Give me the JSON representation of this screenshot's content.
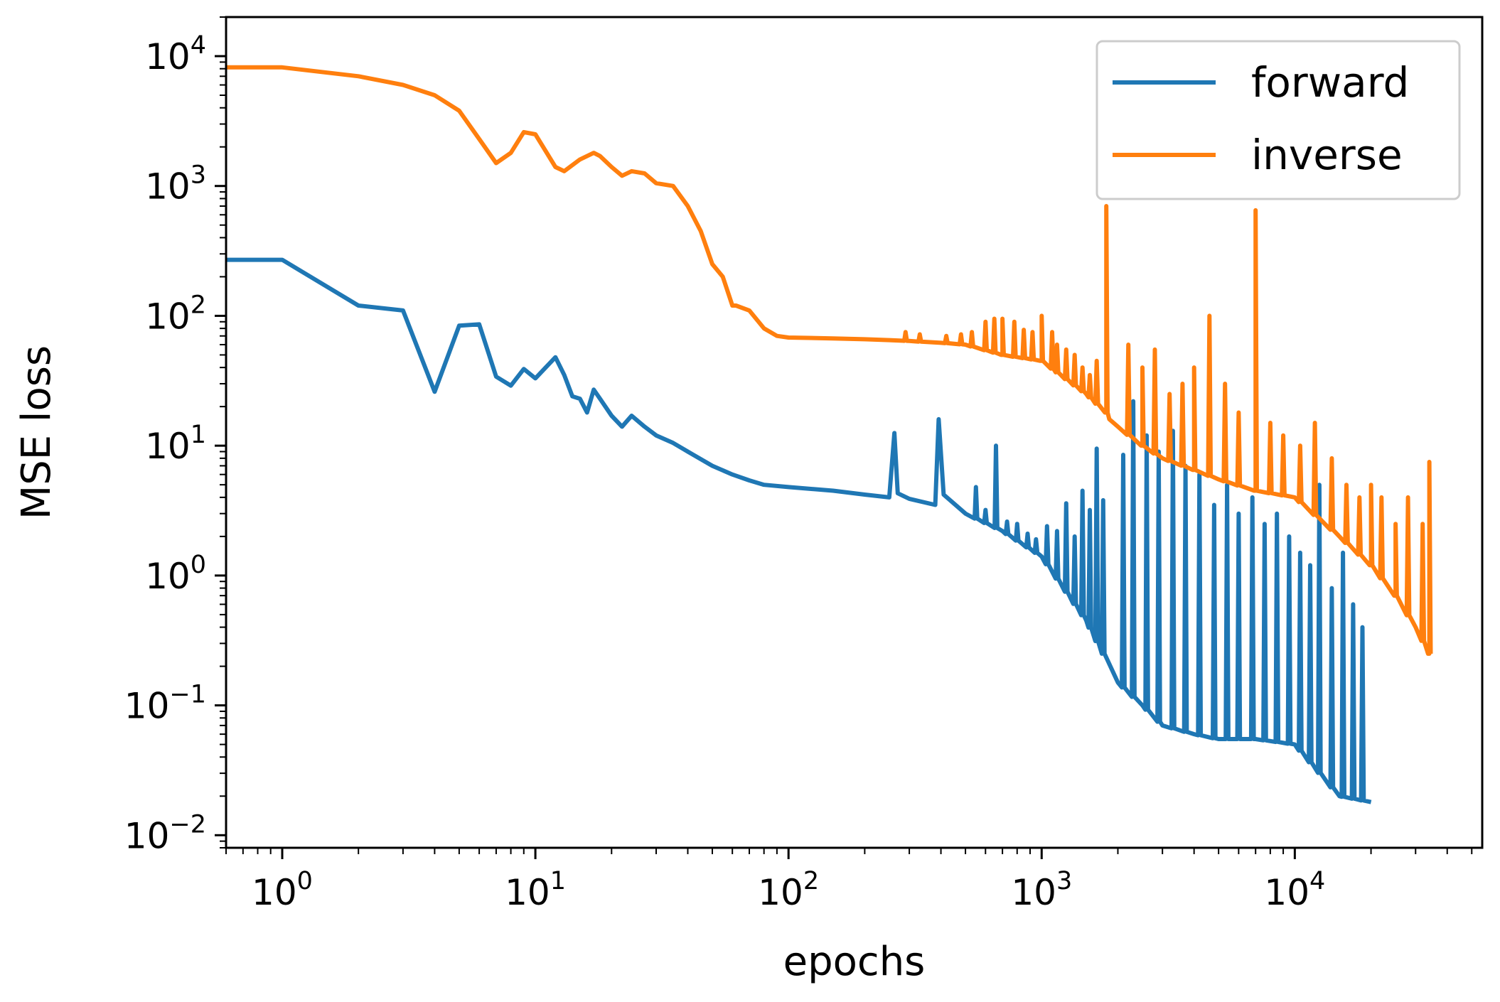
{
  "chart_data": {
    "type": "line",
    "title": "",
    "xlabel": "epochs",
    "ylabel": "MSE loss",
    "xscale": "log",
    "yscale": "log",
    "xlim": [
      0.6,
      55000
    ],
    "ylim": [
      0.008,
      20000
    ],
    "x_ticks": [
      {
        "value": 1,
        "base": "10",
        "exp": "0"
      },
      {
        "value": 10,
        "base": "10",
        "exp": "1"
      },
      {
        "value": 100,
        "base": "10",
        "exp": "2"
      },
      {
        "value": 1000,
        "base": "10",
        "exp": "3"
      },
      {
        "value": 10000,
        "base": "10",
        "exp": "4"
      }
    ],
    "y_ticks": [
      {
        "value": 0.01,
        "base": "10",
        "exp": "−2"
      },
      {
        "value": 0.1,
        "base": "10",
        "exp": "−1"
      },
      {
        "value": 1,
        "base": "10",
        "exp": "0"
      },
      {
        "value": 10,
        "base": "10",
        "exp": "1"
      },
      {
        "value": 100,
        "base": "10",
        "exp": "2"
      },
      {
        "value": 1000,
        "base": "10",
        "exp": "3"
      },
      {
        "value": 10000,
        "base": "10",
        "exp": "4"
      }
    ],
    "legend": {
      "position": "top-right"
    },
    "series": [
      {
        "name": "forward",
        "color": "#1f77b4",
        "x": [
          0.6,
          1,
          2,
          3,
          4,
          5,
          6,
          7,
          8,
          9,
          10,
          12,
          13,
          14,
          15,
          16,
          17,
          18,
          20,
          22,
          24,
          27,
          30,
          35,
          40,
          50,
          60,
          70,
          80,
          100,
          150,
          200,
          250,
          262,
          270,
          300,
          380,
          392,
          410,
          500,
          700,
          1000,
          1500,
          2000,
          2500,
          3000,
          4000,
          5000,
          7000,
          10000,
          15000,
          20000
        ],
        "y": [
          270,
          270,
          120,
          110,
          26,
          84,
          86,
          34,
          29,
          39,
          33,
          48,
          35,
          24,
          23,
          18,
          27,
          23,
          17,
          14,
          17,
          14,
          12,
          10.5,
          9,
          7,
          6,
          5.4,
          5,
          4.8,
          4.5,
          4.2,
          4.0,
          12.5,
          4.3,
          3.9,
          3.5,
          16,
          4.2,
          3.0,
          2.2,
          1.4,
          0.45,
          0.15,
          0.1,
          0.07,
          0.06,
          0.055,
          0.055,
          0.05,
          0.02,
          0.018
        ],
        "spikes": [
          {
            "x": 550,
            "y": 4.8
          },
          {
            "x": 600,
            "y": 3.2
          },
          {
            "x": 660,
            "y": 10
          },
          {
            "x": 730,
            "y": 2.6
          },
          {
            "x": 800,
            "y": 2.5
          },
          {
            "x": 880,
            "y": 2.1
          },
          {
            "x": 950,
            "y": 1.9
          },
          {
            "x": 1050,
            "y": 2.4
          },
          {
            "x": 1150,
            "y": 2.2
          },
          {
            "x": 1250,
            "y": 3.6
          },
          {
            "x": 1350,
            "y": 2.0
          },
          {
            "x": 1450,
            "y": 4.5
          },
          {
            "x": 1550,
            "y": 3.2
          },
          {
            "x": 1650,
            "y": 9.5
          },
          {
            "x": 1750,
            "y": 3.8
          },
          {
            "x": 2100,
            "y": 8.5
          },
          {
            "x": 2300,
            "y": 22
          },
          {
            "x": 2600,
            "y": 12
          },
          {
            "x": 2900,
            "y": 9
          },
          {
            "x": 3300,
            "y": 13
          },
          {
            "x": 3700,
            "y": 7
          },
          {
            "x": 4200,
            "y": 6
          },
          {
            "x": 4800,
            "y": 3.5
          },
          {
            "x": 5400,
            "y": 5
          },
          {
            "x": 6000,
            "y": 3
          },
          {
            "x": 6800,
            "y": 4
          },
          {
            "x": 7600,
            "y": 2.5
          },
          {
            "x": 8500,
            "y": 3
          },
          {
            "x": 9500,
            "y": 2
          },
          {
            "x": 10500,
            "y": 1.5
          },
          {
            "x": 11500,
            "y": 1.2
          },
          {
            "x": 12500,
            "y": 5
          },
          {
            "x": 14000,
            "y": 0.8
          },
          {
            "x": 15500,
            "y": 1.5
          },
          {
            "x": 17000,
            "y": 0.6
          },
          {
            "x": 18500,
            "y": 0.4
          }
        ]
      },
      {
        "name": "inverse",
        "color": "#ff7f0e",
        "x": [
          0.6,
          1,
          2,
          3,
          4,
          5,
          6,
          7,
          8,
          9,
          10,
          12,
          13,
          15,
          17,
          18,
          20,
          22,
          24,
          27,
          30,
          35,
          40,
          45,
          50,
          55,
          60,
          62,
          70,
          80,
          90,
          100,
          150,
          200,
          250,
          300,
          400,
          500,
          700,
          1000,
          1500,
          1800,
          1850,
          2000,
          2500,
          3000,
          4000,
          5000,
          7000,
          10000,
          15000,
          20000,
          25000,
          30000,
          34000
        ],
        "y": [
          8200,
          8200,
          7000,
          6000,
          5000,
          3800,
          2300,
          1500,
          1800,
          2600,
          2500,
          1400,
          1300,
          1600,
          1800,
          1700,
          1400,
          1200,
          1300,
          1250,
          1050,
          1000,
          700,
          450,
          250,
          200,
          120,
          120,
          110,
          80,
          70,
          68,
          67,
          66,
          65,
          64,
          62,
          60,
          50,
          45,
          25,
          18,
          16,
          14,
          10,
          8,
          6.5,
          5.5,
          4.5,
          4,
          2,
          1.2,
          0.7,
          0.4,
          0.25
        ],
        "spikes": [
          {
            "x": 290,
            "y": 75
          },
          {
            "x": 330,
            "y": 72
          },
          {
            "x": 420,
            "y": 70
          },
          {
            "x": 480,
            "y": 72
          },
          {
            "x": 530,
            "y": 75
          },
          {
            "x": 600,
            "y": 90
          },
          {
            "x": 650,
            "y": 95
          },
          {
            "x": 700,
            "y": 95
          },
          {
            "x": 780,
            "y": 90
          },
          {
            "x": 850,
            "y": 78
          },
          {
            "x": 920,
            "y": 75
          },
          {
            "x": 1000,
            "y": 100
          },
          {
            "x": 1100,
            "y": 75
          },
          {
            "x": 1150,
            "y": 60
          },
          {
            "x": 1250,
            "y": 55
          },
          {
            "x": 1350,
            "y": 50
          },
          {
            "x": 1450,
            "y": 40
          },
          {
            "x": 1550,
            "y": 35
          },
          {
            "x": 1650,
            "y": 45
          },
          {
            "x": 1800,
            "y": 700
          },
          {
            "x": 2200,
            "y": 60
          },
          {
            "x": 2500,
            "y": 40
          },
          {
            "x": 2800,
            "y": 55
          },
          {
            "x": 3200,
            "y": 25
          },
          {
            "x": 3600,
            "y": 30
          },
          {
            "x": 4000,
            "y": 40
          },
          {
            "x": 4600,
            "y": 100
          },
          {
            "x": 5300,
            "y": 30
          },
          {
            "x": 6000,
            "y": 18
          },
          {
            "x": 7000,
            "y": 650
          },
          {
            "x": 8000,
            "y": 15
          },
          {
            "x": 9000,
            "y": 12
          },
          {
            "x": 10500,
            "y": 10
          },
          {
            "x": 12000,
            "y": 15
          },
          {
            "x": 14000,
            "y": 8
          },
          {
            "x": 16000,
            "y": 5
          },
          {
            "x": 18000,
            "y": 4
          },
          {
            "x": 20000,
            "y": 5
          },
          {
            "x": 22000,
            "y": 4
          },
          {
            "x": 25000,
            "y": 2.5
          },
          {
            "x": 28000,
            "y": 4
          },
          {
            "x": 32000,
            "y": 2.5
          },
          {
            "x": 34000,
            "y": 7.5
          }
        ]
      }
    ]
  }
}
